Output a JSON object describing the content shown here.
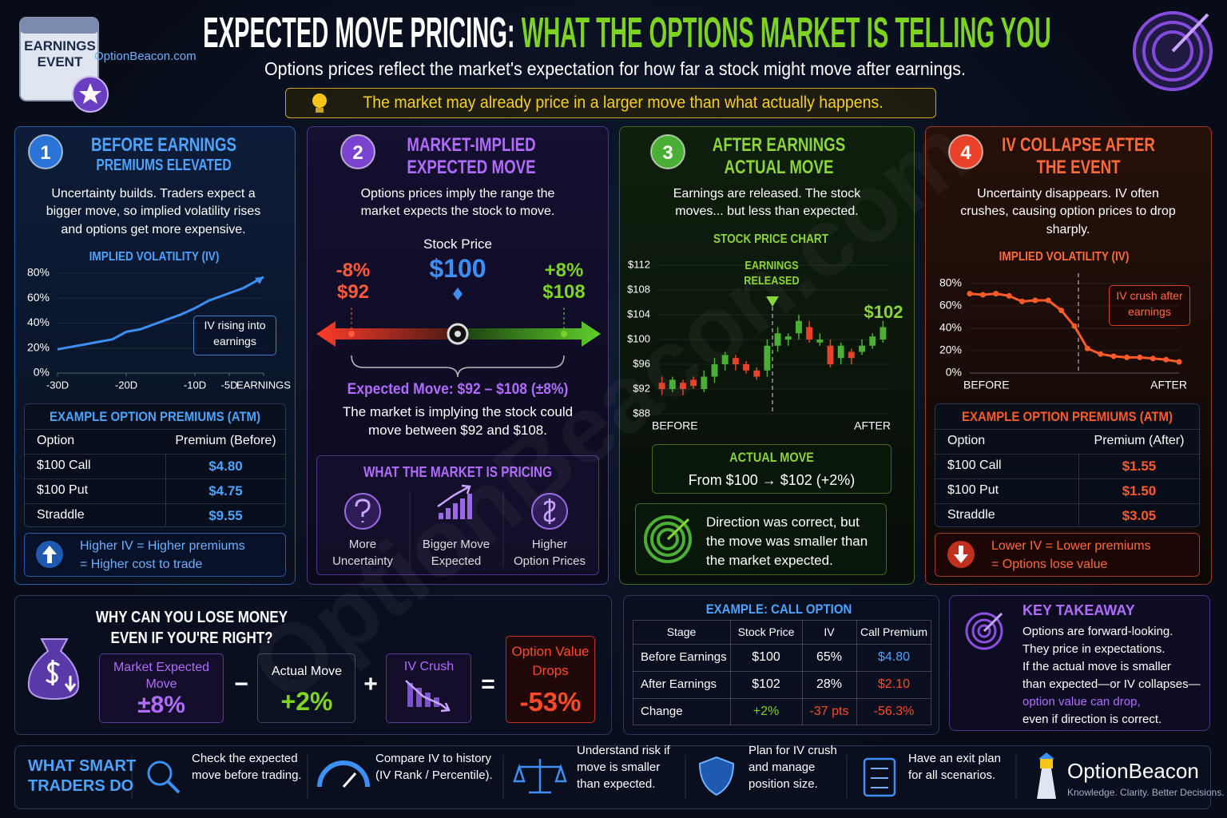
{
  "header": {
    "badge_line1": "EARNINGS",
    "badge_line2": "EVENT",
    "site": "OptionBeacon.com",
    "title_part1": "EXPECTED MOVE PRICING:",
    "title_part2": "WHAT THE OPTIONS MARKET IS TELLING YOU",
    "subtitle": "Options prices reflect the market's expectation for how far a stock might move after earnings.",
    "callout": "The market may already price in a larger move than what actually happens."
  },
  "watermark": "OptionBeacon.com",
  "panels": [
    {
      "number": "1",
      "title": [
        "BEFORE EARNINGS",
        "PREMIUMS ELEVATED"
      ],
      "text": "Uncertainty builds. Traders expect a bigger move, so implied volatility rises and options get more expensive.",
      "chart": {
        "type": "line",
        "title": "IMPLIED VOLATILITY (IV)",
        "x": [
          -30,
          -28,
          -26,
          -24,
          -22,
          -20,
          -18,
          -16,
          -14,
          -12,
          -10,
          -8,
          -6,
          -5,
          -3,
          -1,
          0
        ],
        "values": [
          19,
          21,
          23,
          25,
          27,
          33,
          35,
          39,
          43,
          47,
          52,
          58,
          62,
          64,
          68,
          74,
          77
        ],
        "color": "#3d8ff5",
        "xlim": [
          -30,
          0
        ],
        "xticks": [
          {
            "value": -30,
            "label": "-30D"
          },
          {
            "value": -20,
            "label": "-20D"
          },
          {
            "value": -10,
            "label": "-10D"
          },
          {
            "value": -5,
            "label": "-5D"
          },
          {
            "value": 0,
            "label": "EARNINGS"
          }
        ],
        "ylim": [
          0,
          80
        ],
        "yticks": [
          {
            "value": 0,
            "label": "0%"
          },
          {
            "value": 20,
            "label": "20%"
          },
          {
            "value": 40,
            "label": "40%"
          },
          {
            "value": 60,
            "label": "60%"
          },
          {
            "value": 80,
            "label": "80%"
          }
        ],
        "annotation": "IV rising into earnings"
      },
      "table": {
        "title": "EXAMPLE OPTION PREMIUMS (ATM)",
        "header": [
          "Option",
          "Premium (Before)"
        ],
        "rows": [
          [
            "$100 Call",
            "$4.80"
          ],
          [
            "$100 Put",
            "$4.75"
          ],
          [
            "Straddle",
            "$9.55"
          ]
        ]
      },
      "note": [
        "Higher IV = Higher premiums",
        "= Higher cost to trade"
      ]
    },
    {
      "number": "2",
      "title": [
        "MARKET-IMPLIED",
        "EXPECTED MOVE"
      ],
      "text": "Options prices imply the range the market expects the stock to move.",
      "stock_label": "Stock Price",
      "stock_price": "$100",
      "low_pct": "-8%",
      "low_price": "$92",
      "high_pct": "+8%",
      "high_price": "$108",
      "range": "Expected Move: $92 – $108 (±8%)",
      "range_text": "The market is implying the stock could move between $92 and $108.",
      "box": {
        "title": "WHAT THE MARKET IS PRICING",
        "items": [
          [
            "More",
            "Uncertainty"
          ],
          [
            "Bigger Move",
            "Expected"
          ],
          [
            "Higher",
            "Option Prices"
          ]
        ]
      }
    },
    {
      "number": "3",
      "title": [
        "AFTER EARNINGS",
        "ACTUAL MOVE"
      ],
      "text": "Earnings are released. The stock moves... but less than expected.",
      "chart": {
        "type": "candlestick",
        "title": "STOCK PRICE CHART",
        "candles": [
          {
            "open": 93,
            "high": 94,
            "low": 91,
            "close": 92
          },
          {
            "open": 92,
            "high": 94,
            "low": 91.5,
            "close": 93.5
          },
          {
            "open": 93,
            "high": 93.5,
            "low": 91,
            "close": 92
          },
          {
            "open": 93.5,
            "high": 94,
            "low": 92,
            "close": 92.5
          },
          {
            "open": 92,
            "high": 95,
            "low": 91.5,
            "close": 94
          },
          {
            "open": 94,
            "high": 97,
            "low": 93,
            "close": 96
          },
          {
            "open": 96,
            "high": 98,
            "low": 95,
            "close": 97.5
          },
          {
            "open": 97,
            "high": 97.5,
            "low": 95,
            "close": 96
          },
          {
            "open": 96,
            "high": 96.5,
            "low": 94.5,
            "close": 95
          },
          {
            "open": 95,
            "high": 95.5,
            "low": 93.5,
            "close": 94
          },
          {
            "open": 95,
            "high": 100,
            "low": 94,
            "close": 99
          },
          {
            "open": 99,
            "high": 102,
            "low": 98,
            "close": 101
          },
          {
            "open": 100,
            "high": 101,
            "low": 99,
            "close": 100.5
          },
          {
            "open": 101,
            "high": 104,
            "low": 100,
            "close": 103
          },
          {
            "open": 102,
            "high": 103,
            "low": 99.5,
            "close": 100
          },
          {
            "open": 99.5,
            "high": 101,
            "low": 99,
            "close": 100
          },
          {
            "open": 99,
            "high": 100,
            "low": 95.5,
            "close": 96
          },
          {
            "open": 97,
            "high": 99.5,
            "low": 96,
            "close": 99
          },
          {
            "open": 98,
            "high": 98.5,
            "low": 96,
            "close": 97
          },
          {
            "open": 98,
            "high": 100,
            "low": 97.5,
            "close": 99
          },
          {
            "open": 99,
            "high": 101,
            "low": 98.5,
            "close": 100.5
          },
          {
            "open": 100,
            "high": 103,
            "low": 99.5,
            "close": 102
          }
        ],
        "ylim": [
          88,
          112
        ],
        "yticks": [
          {
            "value": 88,
            "label": "$88"
          },
          {
            "value": 92,
            "label": "$92"
          },
          {
            "value": 96,
            "label": "$96"
          },
          {
            "value": 100,
            "label": "$100"
          },
          {
            "value": 104,
            "label": "$104"
          },
          {
            "value": 108,
            "label": "$108"
          },
          {
            "value": 112,
            "label": "$112"
          }
        ],
        "xlabels": [
          "BEFORE",
          "AFTER"
        ],
        "annotation": "EARNINGS RELEASED",
        "end_label": "$102",
        "up_color": "#4caf35",
        "down_color": "#e8432a"
      },
      "result": {
        "title": "ACTUAL MOVE",
        "text": "From $100  →  $102 (+2%)"
      },
      "note": "Direction was correct, but the move was smaller than the market expected."
    },
    {
      "number": "4",
      "title": [
        "IV COLLAPSE AFTER",
        "THE EVENT"
      ],
      "text": "Uncertainty disappears. IV often crushes, causing option prices to drop sharply.",
      "chart": {
        "type": "line",
        "title": "IMPLIED VOLATILITY (IV)",
        "values": [
          71,
          70,
          71,
          69,
          64,
          65,
          65,
          56,
          42,
          22,
          17,
          15,
          14,
          14,
          13,
          12,
          10
        ],
        "color": "#ff5a2a",
        "ylim": [
          0,
          80
        ],
        "yticks": [
          {
            "value": 0,
            "label": "0%"
          },
          {
            "value": 20,
            "label": "20%"
          },
          {
            "value": 40,
            "label": "40%"
          },
          {
            "value": 60,
            "label": "60%"
          },
          {
            "value": 80,
            "label": "80%"
          }
        ],
        "xlabels": [
          "BEFORE",
          "AFTER"
        ],
        "annotation": "IV crush after earnings"
      },
      "table": {
        "title": "EXAMPLE OPTION PREMIUMS (ATM)",
        "header": [
          "Option",
          "Premium (After)"
        ],
        "rows": [
          [
            "$100 Call",
            "$1.55"
          ],
          [
            "$100 Put",
            "$1.50"
          ],
          [
            "Straddle",
            "$3.05"
          ]
        ]
      },
      "note": [
        "Lower IV = Lower premiums",
        "= Options lose value"
      ]
    }
  ],
  "lose_money": {
    "title": [
      "WHY CAN YOU LOSE MONEY",
      "EVEN IF YOU'RE RIGHT?"
    ],
    "terms": [
      {
        "label": "Market Expected Move",
        "value": "±8%"
      },
      {
        "label": "Actual Move",
        "value": "+2%"
      },
      {
        "label": "IV Crush"
      },
      {
        "label": "Option Value Drops",
        "value": "-53%"
      }
    ],
    "operators": [
      "−",
      "+",
      "="
    ]
  },
  "example": {
    "title": "EXAMPLE: CALL OPTION",
    "header": [
      "Stage",
      "Stock Price",
      "IV",
      "Call Premium"
    ],
    "rows": [
      [
        "Before Earnings",
        "$100",
        "65%",
        "$4.80"
      ],
      [
        "After Earnings",
        "$102",
        "28%",
        "$2.10"
      ],
      [
        "Change",
        "+2%",
        "-37 pts",
        "-56.3%"
      ]
    ]
  },
  "takeaway": {
    "title": "KEY TAKEAWAY",
    "lines": [
      "Options are forward-looking.",
      "They price in expectations.",
      "If the actual move is smaller",
      "than expected—or IV collapses—",
      "option value can drop,",
      "even if direction is correct."
    ]
  },
  "footer": {
    "title": [
      "WHAT SMART",
      "TRADERS DO"
    ],
    "items": [
      [
        "Check the expected",
        "move before trading."
      ],
      [
        "Compare IV to history",
        "(IV Rank / Percentile)."
      ],
      [
        "Understand risk if",
        "move is smaller",
        "than expected."
      ],
      [
        "Plan for IV crush",
        "and manage",
        "position size."
      ],
      [
        "Have an exit plan",
        "for all scenarios."
      ]
    ],
    "brand": "OptionBeacon",
    "tagline": "Knowledge. Clarity. Better Decisions."
  }
}
